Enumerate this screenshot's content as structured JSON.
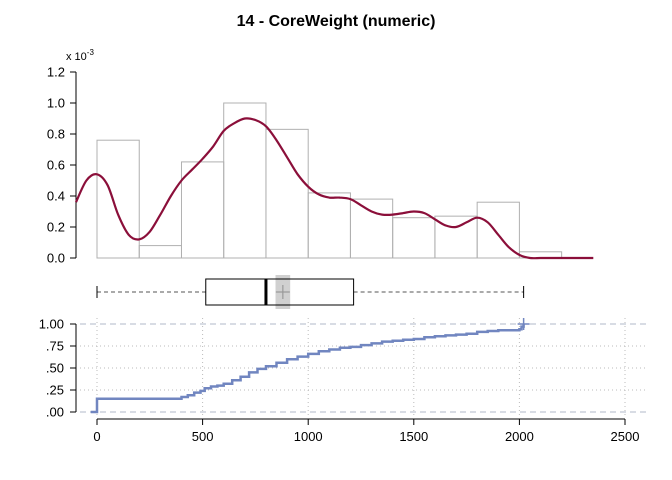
{
  "title": "14 - CoreWeight (numeric)",
  "chart_data": [
    {
      "type": "bar",
      "panel": "histogram",
      "multiplier_label": "x 10",
      "multiplier_exponent": "-3",
      "bins": [
        {
          "x0": 0,
          "x1": 200,
          "density": 0.76
        },
        {
          "x0": 200,
          "x1": 400,
          "density": 0.08
        },
        {
          "x0": 400,
          "x1": 600,
          "density": 0.62
        },
        {
          "x0": 600,
          "x1": 800,
          "density": 1.0
        },
        {
          "x0": 800,
          "x1": 1000,
          "density": 0.83
        },
        {
          "x0": 1000,
          "x1": 1200,
          "density": 0.42
        },
        {
          "x0": 1200,
          "x1": 1400,
          "density": 0.38
        },
        {
          "x0": 1400,
          "x1": 1600,
          "density": 0.26
        },
        {
          "x0": 1600,
          "x1": 1800,
          "density": 0.27
        },
        {
          "x0": 1800,
          "x1": 2000,
          "density": 0.36
        },
        {
          "x0": 2000,
          "x1": 2200,
          "density": 0.04
        }
      ],
      "density_curve": {
        "x": [
          -100,
          -50,
          0,
          50,
          100,
          150,
          200,
          250,
          300,
          350,
          400,
          450,
          500,
          550,
          600,
          650,
          700,
          750,
          800,
          850,
          900,
          950,
          1000,
          1050,
          1100,
          1150,
          1200,
          1250,
          1300,
          1350,
          1400,
          1450,
          1500,
          1550,
          1600,
          1650,
          1700,
          1750,
          1800,
          1850,
          1900,
          1950,
          2000,
          2050,
          2100,
          2150,
          2200,
          2250,
          2300,
          2350
        ],
        "y": [
          0.36,
          0.5,
          0.54,
          0.47,
          0.28,
          0.15,
          0.12,
          0.17,
          0.28,
          0.4,
          0.5,
          0.57,
          0.64,
          0.72,
          0.82,
          0.87,
          0.9,
          0.89,
          0.85,
          0.76,
          0.65,
          0.54,
          0.46,
          0.41,
          0.39,
          0.39,
          0.38,
          0.34,
          0.3,
          0.28,
          0.28,
          0.29,
          0.3,
          0.29,
          0.25,
          0.21,
          0.2,
          0.23,
          0.26,
          0.23,
          0.15,
          0.07,
          0.02,
          0.0,
          0.0,
          0.0,
          0.0,
          0.0,
          0.0,
          0.0
        ]
      },
      "yticks": [
        0.0,
        0.2,
        0.4,
        0.6,
        0.8,
        1.0,
        1.2
      ],
      "ytick_labels": [
        "0.0",
        "0.2",
        "0.4",
        "0.6",
        "0.8",
        "1.0",
        "1.2"
      ],
      "ylim": [
        0,
        1.2
      ],
      "bar_color": "#b0b0b0",
      "curve_color": "#8b0f3a"
    },
    {
      "type": "boxplot",
      "panel": "boxplot",
      "whisker_low": 0,
      "q1": 515,
      "median": 800,
      "mean": 880,
      "q3": 1215,
      "whisker_high": 2020,
      "mean_ci": [
        850,
        910
      ]
    },
    {
      "type": "line",
      "panel": "ecdf",
      "x": [
        -30,
        0,
        0,
        100,
        200,
        300,
        380,
        400,
        430,
        460,
        490,
        510,
        540,
        570,
        600,
        640,
        680,
        720,
        760,
        800,
        850,
        900,
        950,
        1000,
        1050,
        1100,
        1150,
        1200,
        1250,
        1300,
        1350,
        1400,
        1450,
        1500,
        1550,
        1600,
        1650,
        1700,
        1750,
        1800,
        1850,
        1900,
        1950,
        2000,
        2010,
        2020
      ],
      "y": [
        0.0,
        0.0,
        0.15,
        0.15,
        0.15,
        0.15,
        0.15,
        0.17,
        0.19,
        0.22,
        0.24,
        0.27,
        0.29,
        0.3,
        0.32,
        0.36,
        0.4,
        0.45,
        0.49,
        0.52,
        0.56,
        0.6,
        0.63,
        0.66,
        0.69,
        0.71,
        0.73,
        0.74,
        0.76,
        0.78,
        0.8,
        0.81,
        0.82,
        0.83,
        0.85,
        0.86,
        0.87,
        0.88,
        0.89,
        0.91,
        0.92,
        0.93,
        0.93,
        0.94,
        0.97,
        1.0
      ],
      "yticks": [
        0.0,
        0.25,
        0.5,
        0.75,
        1.0
      ],
      "ytick_labels": [
        ".00",
        ".25",
        ".50",
        ".75",
        "1.00"
      ],
      "xticks": [
        0,
        500,
        1000,
        1500,
        2000,
        2500
      ],
      "xtick_labels": [
        "0",
        "500",
        "1000",
        "1500",
        "2000",
        "2500"
      ],
      "xlim": [
        -100,
        2600
      ],
      "line_color": "#7186c0"
    }
  ]
}
